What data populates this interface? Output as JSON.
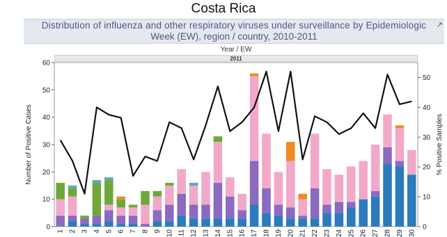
{
  "page": {
    "country": "Costa Rica",
    "title_line1": "Distribution of influenza and other respiratory viruses under surveillance by Epidemiologic",
    "title_line2": "Week (EW), region / country, 2010-2011",
    "header_dims": "Year  /  EW",
    "header_year": "2011",
    "external_icon": "external-link-icon"
  },
  "chart_data": {
    "type": "bar",
    "title": "Distribution of influenza and other respiratory viruses under surveillance by Epidemiologic Week (EW), region / country, 2010-2011",
    "xlabel": "",
    "ylabel": "Number of Positive Cases",
    "y2label": "% Positive Samples",
    "ylim": [
      0,
      60
    ],
    "y2lim": [
      0,
      55
    ],
    "yticks": [
      0,
      10,
      20,
      30,
      40,
      50,
      60
    ],
    "y2ticks": [
      0,
      10,
      20,
      30,
      40,
      50
    ],
    "grid": false,
    "legend": "none",
    "categories": [
      "1",
      "2",
      "3",
      "4",
      "5",
      "6",
      "7",
      "8",
      "9",
      "10",
      "11",
      "12",
      "13",
      "14",
      "15",
      "16",
      "17",
      "18",
      "19",
      "20",
      "21",
      "22",
      "23",
      "24",
      "25",
      "26",
      "27",
      "28",
      "29",
      "30"
    ],
    "stack_series": [
      {
        "color": "#2b7bbd",
        "values": [
          0,
          2,
          1,
          1,
          2,
          1,
          1,
          0,
          2,
          2,
          4,
          3,
          3,
          3,
          3,
          3,
          8,
          5,
          4,
          3,
          3,
          3,
          5,
          5,
          7,
          10,
          11,
          23,
          22,
          19
        ]
      },
      {
        "color": "#8a6bbf",
        "values": [
          4,
          2,
          2,
          3,
          4,
          3,
          3,
          1,
          4,
          6,
          8,
          5,
          5,
          13,
          8,
          3,
          16,
          9,
          4,
          4,
          1,
          11,
          3,
          4,
          2,
          0,
          2,
          6,
          2,
          0
        ]
      },
      {
        "color": "#f2a9c9",
        "values": [
          6,
          7,
          0,
          0,
          2,
          3,
          3,
          7,
          5,
          7,
          9,
          7,
          12,
          15,
          7,
          6,
          31,
          20,
          12,
          17,
          6,
          20,
          13,
          10,
          13,
          14,
          17,
          12,
          12,
          9
        ]
      },
      {
        "color": "#6fa83a",
        "values": [
          6,
          3,
          1,
          12,
          9,
          3,
          1,
          5,
          2,
          1,
          0,
          0,
          0,
          2,
          0,
          0,
          0,
          0,
          0,
          0,
          0,
          0,
          0,
          0,
          0,
          0,
          0,
          0,
          0,
          0
        ]
      },
      {
        "color": "#5ba5c9",
        "values": [
          0,
          1,
          0,
          1,
          1,
          0,
          0,
          0,
          0,
          0,
          0,
          1,
          0,
          0,
          0,
          0,
          0,
          0,
          0,
          0,
          0,
          0,
          0,
          0,
          0,
          0,
          0,
          0,
          0,
          0
        ]
      },
      {
        "color": "#f08a24",
        "values": [
          0,
          0,
          0,
          0,
          0,
          1,
          0,
          0,
          0,
          0,
          0,
          0,
          0,
          0,
          0,
          0,
          1,
          0,
          0,
          7,
          2,
          0,
          0,
          0,
          0,
          0,
          0,
          0,
          1,
          0
        ]
      }
    ],
    "line_series": {
      "axis": "right",
      "color": "#111111",
      "values": [
        29,
        22,
        11,
        40,
        37.5,
        36.5,
        17,
        23.5,
        22,
        35,
        33,
        22.5,
        34,
        47,
        32,
        35,
        40,
        52,
        32,
        52,
        22.5,
        37,
        35,
        31,
        33,
        38,
        33,
        51,
        41,
        42
      ]
    }
  }
}
